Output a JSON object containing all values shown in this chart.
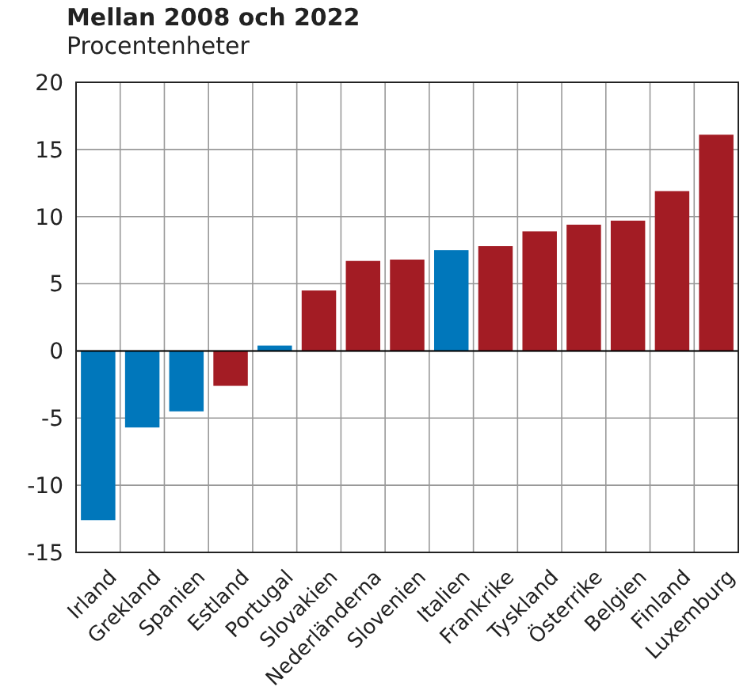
{
  "chart_data": {
    "type": "bar",
    "title": "Mellan 2008 och 2022",
    "subtitle": "Procentenheter",
    "categories": [
      "Irland",
      "Grekland",
      "Spanien",
      "Estland",
      "Portugal",
      "Slovakien",
      "Nederländerna",
      "Slovenien",
      "Italien",
      "Frankrike",
      "Tyskland",
      "Österrike",
      "Belgien",
      "Finland",
      "Luxemburg"
    ],
    "values": [
      -12.6,
      -5.7,
      -4.5,
      -2.6,
      0.4,
      4.5,
      6.7,
      6.8,
      7.5,
      7.8,
      8.9,
      9.4,
      9.7,
      11.9,
      16.1
    ],
    "colors": [
      "#0077bb",
      "#0077bb",
      "#0077bb",
      "#a31c24",
      "#0077bb",
      "#a31c24",
      "#a31c24",
      "#a31c24",
      "#0077bb",
      "#a31c24",
      "#a31c24",
      "#a31c24",
      "#a31c24",
      "#a31c24",
      "#a31c24"
    ],
    "ylim": [
      -15,
      20
    ],
    "yticks": [
      -15,
      -10,
      -5,
      0,
      5,
      10,
      15,
      20
    ],
    "grid": true
  }
}
